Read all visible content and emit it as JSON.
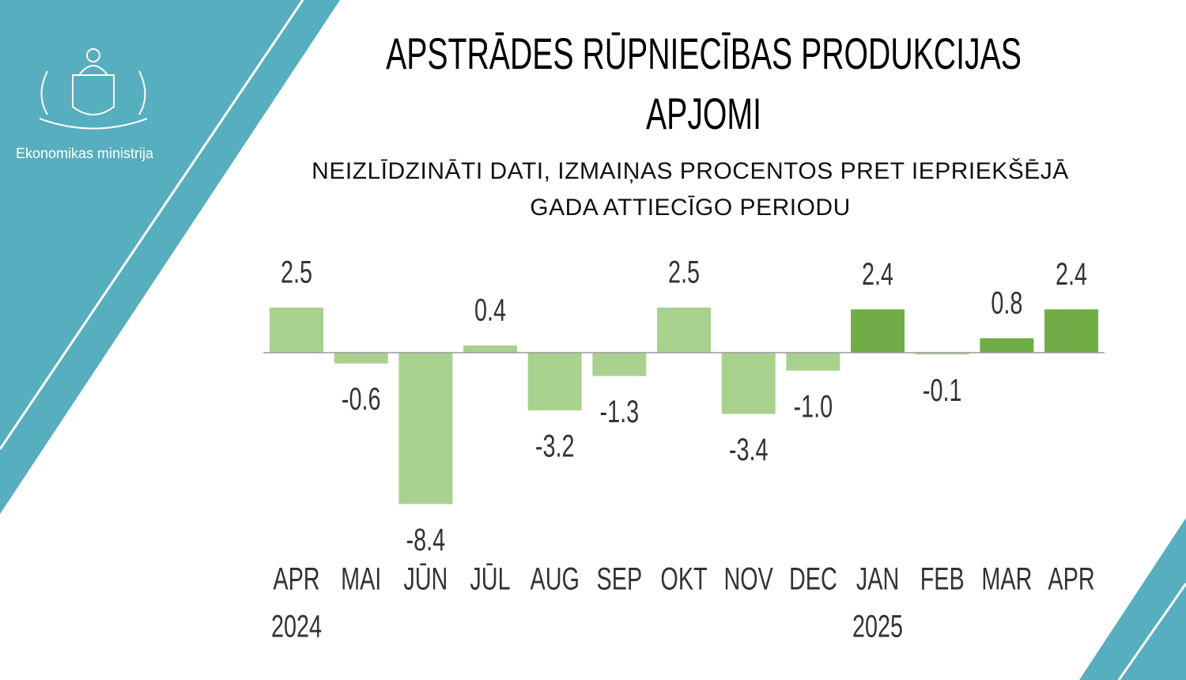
{
  "brand": "Ekonomikas ministrija",
  "chart_data": {
    "type": "bar",
    "title": "APSTRĀDES RŪPNIECĪBAS PRODUKCIJAS APJOMI",
    "subtitle": "NEIZLĪDZINĀTI DATI, IZMAIŅAS PROCENTOS PRET IEPRIEKŠĒJĀ GADA ATTIECĪGO PERIODU",
    "categories": [
      "APR",
      "MAI",
      "JŪN",
      "JŪL",
      "AUG",
      "SEP",
      "OKT",
      "NOV",
      "DEC",
      "JAN",
      "FEB",
      "MAR",
      "APR"
    ],
    "years": [
      "2024",
      null,
      null,
      null,
      null,
      null,
      null,
      null,
      null,
      "2025",
      null,
      null,
      null
    ],
    "values": [
      2.5,
      -0.6,
      -8.4,
      0.4,
      -3.2,
      -1.3,
      2.5,
      -3.4,
      -1.0,
      2.4,
      -0.1,
      0.8,
      2.4
    ],
    "value_labels": [
      "2.5",
      "-0.6",
      "-8.4",
      "0.4",
      "-3.2",
      "-1.3",
      "2.5",
      "-3.4",
      "-1.0",
      "2.4",
      "-0.1",
      "0.8",
      "2.4"
    ],
    "colors": [
      "#a9d18e",
      "#a9d18e",
      "#a9d18e",
      "#a9d18e",
      "#a9d18e",
      "#a9d18e",
      "#a9d18e",
      "#a9d18e",
      "#a9d18e",
      "#70ad47",
      "#a9d18e",
      "#70ad47",
      "#70ad47"
    ]
  }
}
